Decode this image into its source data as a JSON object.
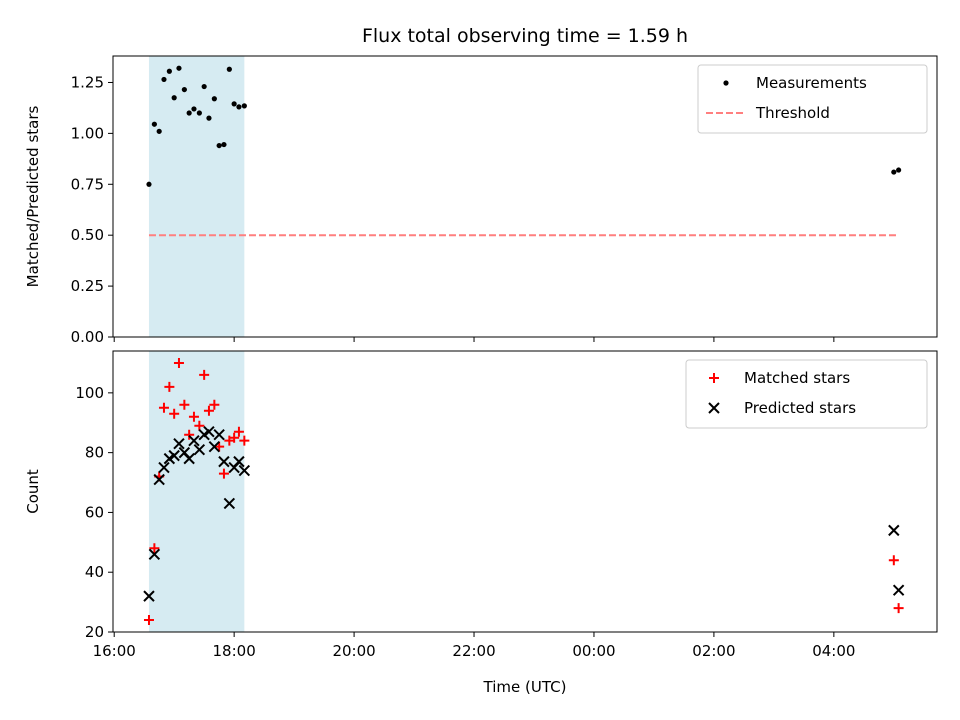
{
  "chart_data": [
    {
      "type": "scatter",
      "title": "Flux total observing time = 1.59 h",
      "ylabel": "Matched/Predicted stars",
      "xlabel": "",
      "xlim": [
        15.98,
        29.72
      ],
      "ylim": [
        0,
        1.38
      ],
      "yticks": [
        "0.00",
        "0.25",
        "0.50",
        "0.75",
        "1.00",
        "1.25"
      ],
      "ytick_values": [
        0,
        0.25,
        0.5,
        0.75,
        1.0,
        1.25
      ],
      "shaded_span": [
        16.58,
        18.17
      ],
      "shaded_color": "#add8e6",
      "series": [
        {
          "name": "Measurements",
          "marker": "dot",
          "color": "#000000",
          "x": [
            16.58,
            16.67,
            16.75,
            16.83,
            16.92,
            17.0,
            17.08,
            17.17,
            17.25,
            17.33,
            17.42,
            17.5,
            17.58,
            17.67,
            17.75,
            17.83,
            17.92,
            18.0,
            18.08,
            18.17,
            29.0,
            29.08
          ],
          "y": [
            0.75,
            1.045,
            1.01,
            1.265,
            1.305,
            1.175,
            1.32,
            1.215,
            1.1,
            1.12,
            1.1,
            1.23,
            1.075,
            1.17,
            0.94,
            0.945,
            1.315,
            1.145,
            1.13,
            1.135,
            0.81,
            0.82
          ]
        },
        {
          "name": "Threshold",
          "marker": "dashed-line",
          "color": "#ff7f7f",
          "x": [
            16.58,
            29.08
          ],
          "y": [
            0.5,
            0.5
          ]
        }
      ],
      "legend": "top-right"
    },
    {
      "type": "scatter",
      "title": "",
      "ylabel": "Count",
      "xlabel": "Time (UTC)",
      "xlim": [
        15.98,
        29.72
      ],
      "ylim": [
        20,
        114
      ],
      "yticks": [
        "20",
        "40",
        "60",
        "80",
        "100"
      ],
      "ytick_values": [
        20,
        40,
        60,
        80,
        100
      ],
      "xticks": [
        "16:00",
        "18:00",
        "20:00",
        "22:00",
        "00:00",
        "02:00",
        "04:00"
      ],
      "xtick_values": [
        16,
        18,
        20,
        22,
        24,
        26,
        28
      ],
      "shaded_span": [
        16.58,
        18.17
      ],
      "shaded_color": "#add8e6",
      "series": [
        {
          "name": "Matched stars",
          "marker": "plus",
          "color": "#ff0000",
          "x": [
            16.58,
            16.67,
            16.75,
            16.83,
            16.92,
            17.0,
            17.08,
            17.17,
            17.25,
            17.33,
            17.42,
            17.5,
            17.58,
            17.67,
            17.75,
            17.83,
            17.92,
            18.0,
            18.08,
            18.17,
            29.0,
            29.08
          ],
          "y": [
            24,
            48,
            72,
            95,
            102,
            93,
            110,
            96,
            86,
            92,
            89,
            106,
            94,
            96,
            82,
            73,
            84,
            85,
            87,
            84,
            44,
            28
          ]
        },
        {
          "name": "Predicted stars",
          "marker": "x",
          "color": "#000000",
          "x": [
            16.58,
            16.67,
            16.75,
            16.83,
            16.92,
            17.0,
            17.08,
            17.17,
            17.25,
            17.33,
            17.42,
            17.5,
            17.58,
            17.67,
            17.75,
            17.83,
            17.92,
            18.0,
            18.08,
            18.17,
            29.0,
            29.08
          ],
          "y": [
            32,
            46,
            71,
            75,
            78,
            79,
            83,
            80,
            78,
            84,
            81,
            86,
            87,
            82,
            86,
            77,
            63,
            75,
            77,
            74,
            54,
            34
          ]
        }
      ],
      "legend": "top-right"
    }
  ]
}
